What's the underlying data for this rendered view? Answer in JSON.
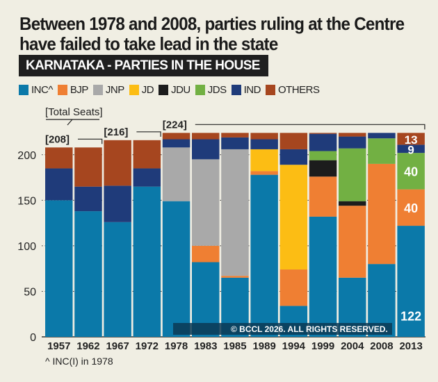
{
  "title": "Between 1978 and 2008, parties ruling at the Centre have failed to take lead in the state",
  "subtitle": "KARNATAKA - PARTIES IN THE HOUSE",
  "footnote": "^ INC(I) in 1978",
  "watermark": "© BCCL 2026. ALL RIGHTS RESERVED.",
  "chart_data": {
    "type": "bar",
    "stacked": true,
    "categories": [
      "1957",
      "1962",
      "1967",
      "1972",
      "1978",
      "1983",
      "1985",
      "1989",
      "1994",
      "1999",
      "2004",
      "2008",
      "2013"
    ],
    "series": [
      {
        "name": "INC^",
        "color": "#0b79a9",
        "values": [
          150,
          138,
          126,
          165,
          149,
          82,
          65,
          178,
          34,
          132,
          65,
          80,
          122
        ]
      },
      {
        "name": "BJP",
        "color": "#ef7f33",
        "values": [
          0,
          0,
          0,
          0,
          0,
          18,
          2,
          4,
          40,
          44,
          79,
          110,
          40
        ]
      },
      {
        "name": "JNP",
        "color": "#a9a9a9",
        "values": [
          0,
          0,
          0,
          0,
          59,
          95,
          139,
          0,
          0,
          0,
          0,
          0,
          0
        ]
      },
      {
        "name": "JD",
        "color": "#fcbd14",
        "values": [
          0,
          0,
          0,
          0,
          0,
          0,
          0,
          24,
          115,
          0,
          0,
          0,
          0
        ]
      },
      {
        "name": "JDU",
        "color": "#1c1c1c",
        "values": [
          0,
          0,
          0,
          0,
          0,
          0,
          0,
          0,
          0,
          18,
          5,
          0,
          0
        ]
      },
      {
        "name": "JDS",
        "color": "#72b043",
        "values": [
          0,
          0,
          0,
          0,
          0,
          0,
          0,
          0,
          0,
          10,
          58,
          28,
          40
        ]
      },
      {
        "name": "IND",
        "color": "#1f3b7a",
        "values": [
          35,
          27,
          40,
          20,
          9,
          22,
          13,
          11,
          17,
          19,
          13,
          6,
          9
        ]
      },
      {
        "name": "OTHERS",
        "color": "#a6461f",
        "values": [
          23,
          43,
          50,
          31,
          7,
          7,
          5,
          7,
          18,
          1,
          4,
          0,
          13
        ]
      }
    ],
    "data_labels_2013": [
      "122",
      "40",
      "40",
      "9",
      "13"
    ],
    "total_seats_label": "[Total Seats]",
    "total_seats": [
      {
        "label": "[208]",
        "from": "1957",
        "to": "1962"
      },
      {
        "label": "[216]",
        "from": "1967",
        "to": "1972"
      },
      {
        "label": "[224]",
        "from": "1978",
        "to": "2013"
      }
    ],
    "yticks": [
      "0",
      "50",
      "100",
      "150",
      "200"
    ],
    "ylim": [
      0,
      224
    ],
    "grid": "dotted horizontal",
    "legend": "top"
  }
}
